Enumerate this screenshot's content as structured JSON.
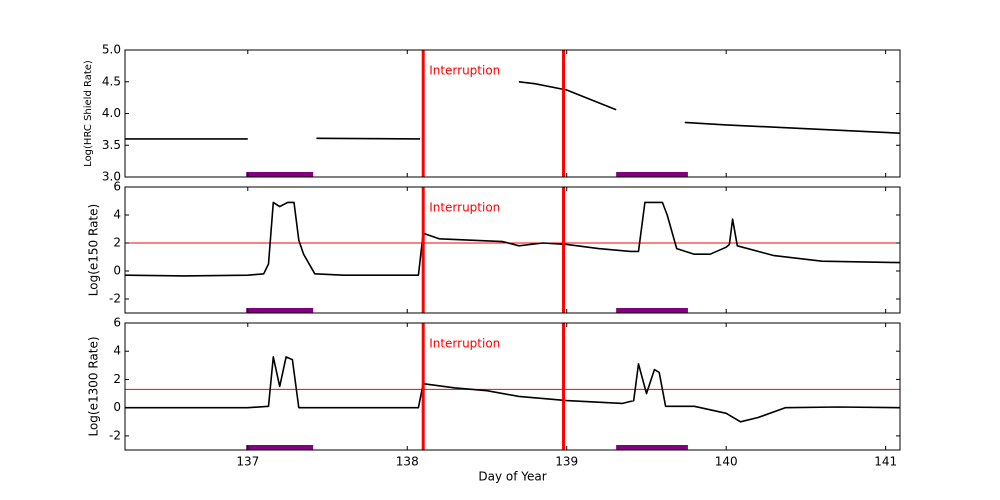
{
  "chart_data": [
    {
      "type": "line",
      "ylabel": "Log(HRC Shield Rate)",
      "xlim": [
        136.23,
        141.09
      ],
      "xticks": [
        137,
        138,
        139,
        140,
        141
      ],
      "ylim": [
        3,
        5
      ],
      "yticks": [
        {
          "value": 3,
          "label": "3.0"
        },
        {
          "value": 3.5,
          "label": "3.5"
        },
        {
          "value": 4,
          "label": "4.0"
        },
        {
          "value": 4.5,
          "label": "4.5"
        },
        {
          "value": 5,
          "label": "5.0"
        }
      ],
      "series": [
        {
          "color": "#000000",
          "x": [
            136.23,
            137.0,
            137.2,
            137.43,
            138.08,
            138.4,
            138.7,
            138.8,
            139.0,
            139.31,
            139.5,
            139.74,
            140.0,
            140.5,
            141.09
          ],
          "values": [
            3.6,
            3.6,
            null,
            3.61,
            3.6,
            null,
            4.5,
            4.47,
            4.37,
            4.06,
            null,
            3.86,
            3.82,
            3.76,
            3.69
          ]
        }
      ],
      "vlines": [
        138.1,
        138.98
      ],
      "vline_color": "#ff0000",
      "spans": [
        [
          136.99,
          137.41
        ],
        [
          139.31,
          139.76
        ]
      ],
      "span_color": "#800080",
      "annotation": "Interruption"
    },
    {
      "type": "line",
      "ylabel": "Log(e150  Rate)",
      "xlim": [
        136.23,
        141.09
      ],
      "xticks": [
        137,
        138,
        139,
        140,
        141
      ],
      "ylim": [
        -3,
        6
      ],
      "yticks": [
        -2,
        0,
        2,
        4,
        6
      ],
      "series": [
        {
          "color": "#000000",
          "x": [
            136.23,
            136.6,
            137.0,
            137.1,
            137.13,
            137.16,
            137.2,
            137.25,
            137.29,
            137.32,
            137.35,
            137.42,
            137.6,
            138.07,
            138.1,
            138.2,
            138.4,
            138.6,
            138.7,
            138.85,
            139.0,
            139.2,
            139.4,
            139.45,
            139.49,
            139.6,
            139.63,
            139.69,
            139.8,
            139.9,
            140.0,
            140.02,
            140.04,
            140.07,
            140.3,
            140.6,
            141.09
          ],
          "values": [
            -0.3,
            -0.35,
            -0.3,
            -0.2,
            0.5,
            4.9,
            4.6,
            4.9,
            4.9,
            2.2,
            1.2,
            -0.2,
            -0.3,
            -0.3,
            2.7,
            2.3,
            2.2,
            2.1,
            1.8,
            2.0,
            1.9,
            1.6,
            1.4,
            1.4,
            4.9,
            4.9,
            4.0,
            1.6,
            1.2,
            1.2,
            1.7,
            1.9,
            3.7,
            1.8,
            1.1,
            0.7,
            0.6
          ]
        }
      ],
      "hlines": [
        2
      ],
      "vlines": [
        138.1,
        138.98
      ],
      "vline_color": "#ff0000",
      "spans": [
        [
          136.99,
          137.41
        ],
        [
          139.31,
          139.76
        ]
      ],
      "span_color": "#800080",
      "annotation": "Interruption"
    },
    {
      "type": "line",
      "ylabel": "Log(e1300 Rate)",
      "xlabel": "Day of Year",
      "xlim": [
        136.23,
        141.09
      ],
      "xticks": [
        137,
        138,
        139,
        140,
        141
      ],
      "ylim": [
        -3,
        6
      ],
      "yticks": [
        -2,
        0,
        2,
        4,
        6
      ],
      "series": [
        {
          "color": "#000000",
          "x": [
            136.23,
            137.0,
            137.13,
            137.16,
            137.2,
            137.24,
            137.28,
            137.32,
            137.6,
            138.07,
            138.1,
            138.3,
            138.5,
            138.7,
            139.0,
            139.35,
            139.42,
            139.45,
            139.5,
            139.55,
            139.58,
            139.62,
            139.8,
            140.0,
            140.09,
            140.2,
            140.37,
            140.7,
            141.09
          ],
          "values": [
            0,
            0,
            0.1,
            3.6,
            1.5,
            3.6,
            3.4,
            0,
            0,
            0,
            1.7,
            1.4,
            1.2,
            0.8,
            0.5,
            0.3,
            0.5,
            3.1,
            1.0,
            2.7,
            2.5,
            0.1,
            0.1,
            -0.4,
            -1.0,
            -0.7,
            0,
            0.05,
            0
          ]
        }
      ],
      "hlines": [
        1.3
      ],
      "vlines": [
        138.1,
        138.98
      ],
      "vline_color": "#ff0000",
      "spans": [
        [
          136.99,
          137.41
        ],
        [
          139.31,
          139.76
        ]
      ],
      "span_color": "#800080",
      "annotation": "Interruption"
    }
  ]
}
